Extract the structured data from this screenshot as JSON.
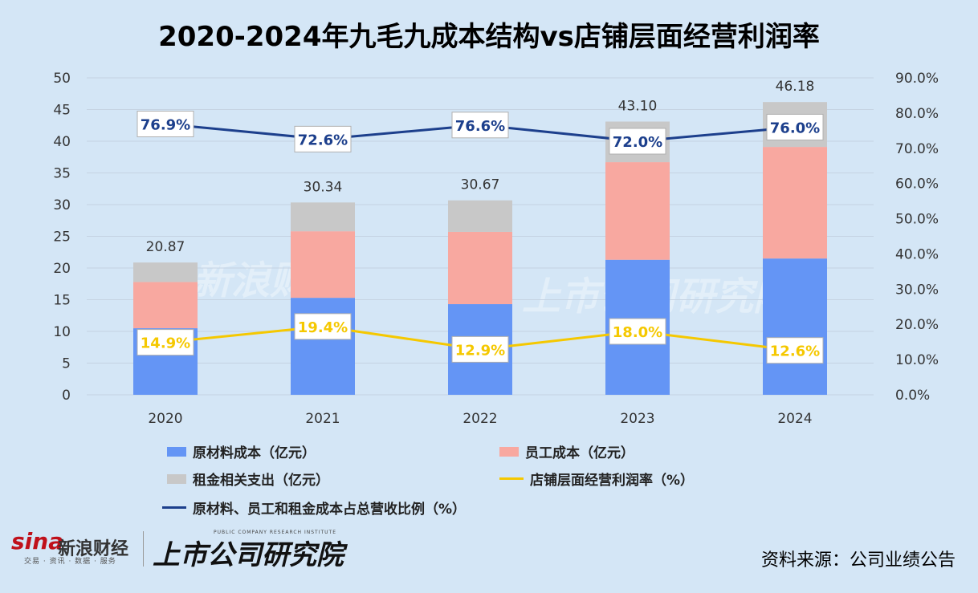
{
  "chart_data": {
    "type": "bar",
    "title": "2020-2024年九毛九成本结构vs店铺层面经营利润率",
    "categories": [
      "2020",
      "2021",
      "2022",
      "2023",
      "2024"
    ],
    "stacked": true,
    "ylim": [
      0,
      50
    ],
    "yticks": [
      0,
      5,
      10,
      15,
      20,
      25,
      30,
      35,
      40,
      45,
      50
    ],
    "y2lim": [
      0,
      90
    ],
    "y2ticks": [
      "0.0%",
      "10.0%",
      "20.0%",
      "30.0%",
      "40.0%",
      "50.0%",
      "60.0%",
      "70.0%",
      "80.0%",
      "90.0%"
    ],
    "series": [
      {
        "name": "原材料成本（亿元）",
        "kind": "bar",
        "color": "#6495f5",
        "values": [
          10.5,
          15.3,
          14.3,
          21.3,
          21.5
        ]
      },
      {
        "name": "员工成本（亿元）",
        "kind": "bar",
        "color": "#f8a8a0",
        "values": [
          7.3,
          10.5,
          11.4,
          15.4,
          17.6
        ]
      },
      {
        "name": "租金相关支出（亿元）",
        "kind": "bar",
        "color": "#c8c8c8",
        "values": [
          3.07,
          4.54,
          4.97,
          6.4,
          7.08
        ]
      },
      {
        "name": "店铺层面经营利润率（%）",
        "kind": "line",
        "axis": "right",
        "color": "#f5c800",
        "values": [
          14.9,
          19.4,
          12.9,
          18.0,
          12.6
        ],
        "labels": [
          "14.9%",
          "19.4%",
          "12.9%",
          "18.0%",
          "12.6%"
        ]
      },
      {
        "name": "原材料、员工和租金成本占总营收比例（%）",
        "kind": "line",
        "axis": "right",
        "color": "#1c3f8c",
        "values": [
          76.9,
          72.6,
          76.6,
          72.0,
          76.0
        ],
        "labels": [
          "76.9%",
          "72.6%",
          "76.6%",
          "72.0%",
          "76.0%"
        ]
      }
    ],
    "totals": [
      "20.87",
      "30.34",
      "30.67",
      "43.10",
      "46.18"
    ]
  },
  "footer": {
    "source": "资料来源：公司业绩公告",
    "sina_logo": "sina",
    "sina_name": "新浪财经",
    "sina_tags": "交易 · 资讯 · 数据 · 服务",
    "institute": "上市公司研究院",
    "institute_en": "PUBLIC COMPANY RESEARCH INSTITUTE"
  }
}
